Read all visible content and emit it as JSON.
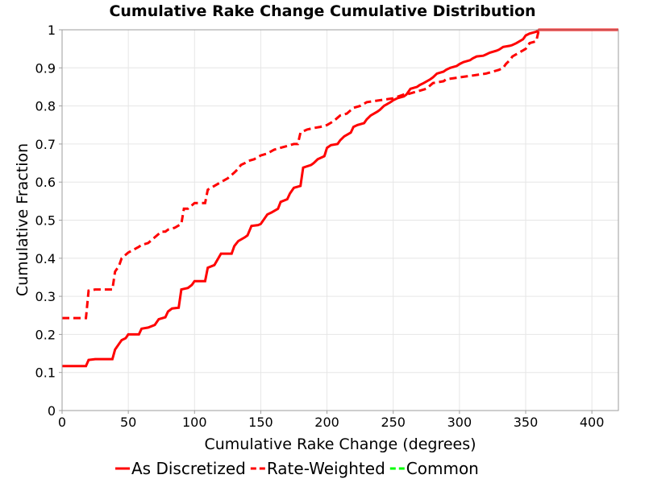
{
  "chart_data": {
    "type": "line",
    "title": "Cumulative Rake Change Cumulative Distribution",
    "xlabel": "Cumulative Rake Change (degrees)",
    "ylabel": "Cumulative Fraction",
    "xlim": [
      0,
      420
    ],
    "ylim": [
      0,
      1
    ],
    "xticks": [
      0,
      50,
      100,
      150,
      200,
      250,
      300,
      350,
      400
    ],
    "yticks": [
      0,
      0.1,
      0.2,
      0.3,
      0.4,
      0.5,
      0.6,
      0.7,
      0.8,
      0.9,
      1
    ],
    "grid": true,
    "legend_position": "bottom",
    "series": [
      {
        "name": "As Discretized",
        "style": "solid",
        "color": "#ff0000",
        "x": [
          0,
          18,
          20,
          25,
          38,
          40,
          43,
          45,
          48,
          50,
          58,
          60,
          65,
          70,
          73,
          78,
          80,
          83,
          88,
          90,
          95,
          98,
          100,
          108,
          110,
          115,
          120,
          128,
          130,
          133,
          138,
          140,
          143,
          148,
          150,
          155,
          158,
          163,
          165,
          170,
          172,
          175,
          180,
          182,
          188,
          190,
          193,
          198,
          200,
          203,
          208,
          210,
          213,
          218,
          220,
          223,
          228,
          230,
          233,
          238,
          240,
          243,
          248,
          250,
          253,
          258,
          260,
          263,
          268,
          270,
          273,
          278,
          280,
          283,
          288,
          290,
          293,
          298,
          300,
          303,
          308,
          310,
          313,
          318,
          320,
          323,
          328,
          330,
          333,
          338,
          340,
          343,
          348,
          350,
          353,
          358,
          360,
          365,
          420
        ],
        "y": [
          0.117,
          0.117,
          0.133,
          0.135,
          0.135,
          0.16,
          0.175,
          0.185,
          0.19,
          0.2,
          0.2,
          0.215,
          0.218,
          0.225,
          0.24,
          0.245,
          0.26,
          0.268,
          0.27,
          0.318,
          0.322,
          0.33,
          0.34,
          0.34,
          0.375,
          0.382,
          0.412,
          0.412,
          0.432,
          0.445,
          0.455,
          0.46,
          0.485,
          0.487,
          0.49,
          0.515,
          0.52,
          0.53,
          0.548,
          0.555,
          0.57,
          0.585,
          0.59,
          0.638,
          0.645,
          0.65,
          0.66,
          0.668,
          0.69,
          0.697,
          0.7,
          0.71,
          0.72,
          0.73,
          0.745,
          0.75,
          0.755,
          0.765,
          0.775,
          0.785,
          0.79,
          0.8,
          0.81,
          0.815,
          0.82,
          0.825,
          0.83,
          0.845,
          0.85,
          0.855,
          0.86,
          0.87,
          0.875,
          0.885,
          0.89,
          0.895,
          0.9,
          0.905,
          0.91,
          0.915,
          0.92,
          0.925,
          0.93,
          0.932,
          0.935,
          0.94,
          0.945,
          0.948,
          0.955,
          0.958,
          0.96,
          0.965,
          0.975,
          0.985,
          0.99,
          0.995,
          1.0,
          1.0,
          1.0
        ]
      },
      {
        "name": "Rate-Weighted",
        "style": "dashed",
        "color": "#ff0000",
        "x": [
          0,
          18,
          20,
          25,
          38,
          40,
          43,
          45,
          50,
          58,
          60,
          65,
          70,
          75,
          78,
          80,
          85,
          90,
          92,
          95,
          100,
          108,
          110,
          115,
          120,
          125,
          130,
          133,
          135,
          138,
          140,
          145,
          150,
          155,
          160,
          165,
          170,
          175,
          178,
          180,
          185,
          190,
          195,
          200,
          205,
          210,
          215,
          220,
          225,
          230,
          240,
          250,
          258,
          260,
          270,
          275,
          280,
          288,
          290,
          300,
          310,
          320,
          330,
          333,
          335,
          338,
          340,
          345,
          350,
          353,
          358,
          360,
          365,
          420
        ],
        "y": [
          0.243,
          0.243,
          0.315,
          0.318,
          0.318,
          0.365,
          0.38,
          0.4,
          0.415,
          0.43,
          0.435,
          0.44,
          0.455,
          0.47,
          0.47,
          0.475,
          0.48,
          0.49,
          0.53,
          0.53,
          0.545,
          0.545,
          0.58,
          0.59,
          0.6,
          0.61,
          0.625,
          0.635,
          0.645,
          0.65,
          0.655,
          0.66,
          0.67,
          0.675,
          0.685,
          0.69,
          0.695,
          0.7,
          0.7,
          0.73,
          0.738,
          0.742,
          0.745,
          0.75,
          0.76,
          0.775,
          0.78,
          0.795,
          0.8,
          0.81,
          0.815,
          0.82,
          0.83,
          0.83,
          0.84,
          0.845,
          0.86,
          0.865,
          0.87,
          0.875,
          0.88,
          0.885,
          0.895,
          0.9,
          0.91,
          0.92,
          0.93,
          0.94,
          0.95,
          0.965,
          0.97,
          1.0,
          1.0,
          1.0
        ]
      },
      {
        "name": "Common",
        "style": "dashed",
        "color": "#00ff00",
        "x": [],
        "y": []
      }
    ]
  }
}
